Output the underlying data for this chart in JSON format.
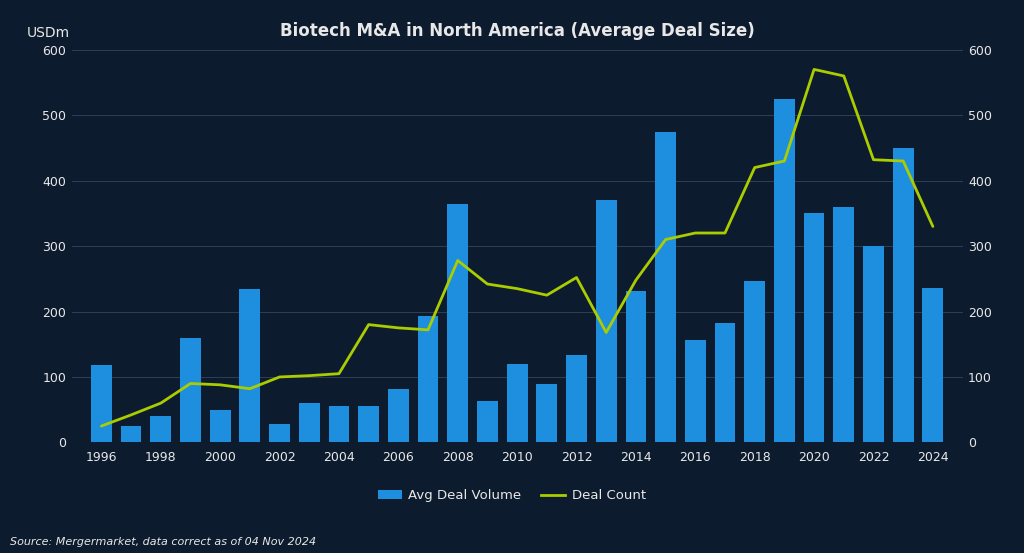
{
  "title": "Biotech M&A in North America (Average Deal Size)",
  "ylabel_left": "USDm",
  "source": "Source: Mergermarket, data correct as of 04 Nov 2024",
  "background_color": "#0d1b2e",
  "bar_color": "#1e8fde",
  "line_color": "#aacc00",
  "text_color": "#e8e8e8",
  "grid_color": "#2e4055",
  "years": [
    1996,
    1997,
    1998,
    1999,
    2000,
    2001,
    2002,
    2003,
    2004,
    2005,
    2006,
    2007,
    2008,
    2009,
    2010,
    2011,
    2012,
    2013,
    2014,
    2015,
    2016,
    2017,
    2018,
    2019,
    2020,
    2021,
    2022,
    2023,
    2024
  ],
  "avg_deal_volume": [
    118,
    25,
    40,
    160,
    50,
    235,
    28,
    60,
    55,
    55,
    82,
    193,
    365,
    63,
    120,
    90,
    133,
    370,
    232,
    475,
    156,
    182,
    247,
    525,
    350,
    360,
    300,
    450,
    236
  ],
  "deal_count": [
    25,
    42,
    60,
    90,
    88,
    82,
    100,
    102,
    105,
    180,
    175,
    172,
    278,
    242,
    235,
    225,
    252,
    168,
    248,
    310,
    320,
    320,
    420,
    430,
    570,
    560,
    432,
    430,
    330
  ],
  "ylim": [
    0,
    600
  ],
  "yticks": [
    0,
    100,
    200,
    300,
    400,
    500,
    600
  ],
  "xtick_step": 2,
  "bar_width": 0.7
}
